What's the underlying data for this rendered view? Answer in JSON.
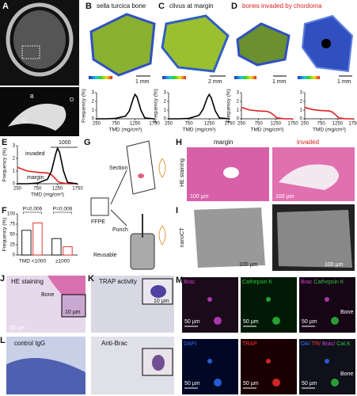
{
  "panels": {
    "a": {
      "letter": "A",
      "labels": [
        "B",
        "D",
        "C"
      ]
    },
    "b": {
      "letter": "B",
      "title": "sella turcica bone",
      "scale": "1 mm"
    },
    "c": {
      "letter": "C",
      "title": "clivus at margin",
      "scale": "2 mm"
    },
    "d": {
      "letter": "D",
      "title": "bones invaded by chordoma",
      "title_color": "#e02020",
      "scales": [
        "1 mm",
        "1 mm"
      ]
    },
    "e": {
      "letter": "E"
    },
    "f": {
      "letter": "F"
    },
    "g": {
      "letter": "G",
      "labels": [
        "Section",
        "FFPE",
        "Punch",
        "Reusable"
      ]
    },
    "h": {
      "letter": "H",
      "columns": [
        "margin",
        "invaded"
      ],
      "row_label": "HE staining",
      "scales": [
        "100 µm",
        "100 µm"
      ]
    },
    "i": {
      "letter": "I",
      "row_label": "nanoCT",
      "scales": [
        "100 µm",
        "100 µm"
      ]
    },
    "j": {
      "letter": "J",
      "title": "HE staining",
      "label": "Bone",
      "scales": [
        "10 µm",
        "50 µm"
      ]
    },
    "k": {
      "letter": "K",
      "title": "TRAP activity",
      "scales": [
        "10 µm"
      ]
    },
    "l": {
      "letter": "L",
      "titles": [
        "control IgG",
        "Anti-Brac"
      ]
    },
    "m": {
      "letter": "M",
      "tiles": [
        {
          "labels": [
            {
              "text": "Brac",
              "color": "#d040d0"
            }
          ],
          "scale": "50 µm"
        },
        {
          "labels": [
            {
              "text": "Cathepsin K",
              "color": "#30c040"
            }
          ],
          "scale": "50 µm"
        },
        {
          "labels": [
            {
              "text": "Brac",
              "color": "#d040d0"
            },
            {
              "text": "Cathepsin K",
              "color": "#30c040"
            }
          ],
          "scale": "50 µm",
          "note": "Bone"
        },
        {
          "labels": [
            {
              "text": "DAPI",
              "color": "#3070ff"
            }
          ],
          "scale": "50 µm"
        },
        {
          "labels": [
            {
              "text": "TRAP",
              "color": "#ff3030"
            }
          ],
          "scale": "50 µm"
        },
        {
          "labels": [
            {
              "text": "DA/",
              "color": "#3070ff"
            },
            {
              "text": "TR/",
              "color": "#ff3030"
            },
            {
              "text": "Brac/",
              "color": "#d040d0"
            },
            {
              "text": "Cat.K",
              "color": "#30c040"
            }
          ],
          "scale": "50 µm",
          "note": "Bone"
        }
      ]
    }
  },
  "chart_data": [
    {
      "type": "line",
      "x": [
        250,
        500,
        750,
        1000,
        1100,
        1200,
        1250,
        1300,
        1400,
        1500,
        1750
      ],
      "series": [
        {
          "color": "#000000",
          "values": [
            0,
            0,
            0.05,
            0.3,
            0.9,
            2.3,
            2.8,
            2.5,
            1.0,
            0.1,
            0
          ]
        }
      ],
      "xlim": [
        250,
        1750
      ],
      "ylim": [
        0,
        3
      ],
      "xticks": [
        250,
        750,
        1250,
        1750
      ],
      "yticks": [
        0,
        1,
        2,
        3
      ],
      "xlabel": "TMD (mg/cm³)",
      "ylabel": "Frequency (%)"
    },
    {
      "type": "line",
      "x": [
        250,
        500,
        750,
        1000,
        1100,
        1200,
        1250,
        1300,
        1400,
        1500,
        1750
      ],
      "series": [
        {
          "color": "#000000",
          "values": [
            0,
            0,
            0.05,
            0.4,
            1.1,
            2.4,
            2.8,
            2.4,
            0.9,
            0.1,
            0
          ]
        }
      ],
      "xlim": [
        250,
        1750
      ],
      "ylim": [
        0,
        3
      ],
      "xticks": [
        250,
        750,
        1250,
        1750
      ],
      "yticks": [
        0,
        1,
        2,
        3
      ],
      "xlabel": "TMD (mg/cm³)",
      "ylabel": "Frequency (%)"
    },
    {
      "type": "line",
      "x": [
        250,
        500,
        750,
        1000,
        1100,
        1200,
        1250,
        1300,
        1400,
        1500,
        1750
      ],
      "series": [
        {
          "color": "#e02020",
          "values": [
            1.3,
            1.0,
            0.9,
            0.85,
            0.7,
            0.4,
            0.2,
            0.1,
            0.05,
            0,
            0
          ]
        }
      ],
      "xlim": [
        250,
        1750
      ],
      "ylim": [
        0,
        3
      ],
      "xticks": [
        250,
        750,
        1250,
        1750
      ],
      "yticks": [
        0,
        1,
        2,
        3
      ],
      "xlabel": "TMD (mg/cm³)",
      "ylabel": "Frequency (%)"
    },
    {
      "type": "line",
      "x": [
        250,
        500,
        750,
        1000,
        1100,
        1200,
        1250,
        1300,
        1400,
        1500,
        1750
      ],
      "series": [
        {
          "color": "#e02020",
          "values": [
            1.3,
            1.05,
            0.95,
            0.9,
            0.75,
            0.45,
            0.25,
            0.1,
            0.05,
            0,
            0
          ]
        }
      ],
      "xlim": [
        250,
        1750
      ],
      "ylim": [
        0,
        3
      ],
      "xticks": [
        250,
        750,
        1250,
        1750
      ],
      "yticks": [
        0,
        1,
        2,
        3
      ],
      "xlabel": "TMD (mg/cm³)"
    },
    {
      "type": "line",
      "x": [
        250,
        500,
        750,
        1000,
        1100,
        1200,
        1250,
        1300,
        1400,
        1500,
        1750
      ],
      "series": [
        {
          "name": "invaded",
          "color": "#e02020",
          "values": [
            1.3,
            1.0,
            0.9,
            0.85,
            0.7,
            0.4,
            0.2,
            0.1,
            0.05,
            0,
            0
          ]
        },
        {
          "name": "margin",
          "color": "#000000",
          "values": [
            0,
            0,
            0.05,
            0.35,
            1.0,
            2.3,
            2.8,
            2.5,
            1.0,
            0.1,
            0
          ]
        }
      ],
      "xlim": [
        250,
        1750
      ],
      "ylim": [
        0,
        3
      ],
      "xticks": [
        250,
        750,
        1250,
        1750
      ],
      "yticks": [
        0,
        1,
        2,
        3
      ],
      "xlabel": "TMD (mg/cm³)",
      "ylabel": "Frequency (%)",
      "annotations": [
        "1000"
      ]
    },
    {
      "type": "bar",
      "categories": [
        "TMD <1000",
        "≥1000"
      ],
      "series": [
        {
          "color": "#000000",
          "values": [
            60,
            40
          ]
        },
        {
          "color": "#e02020",
          "values": [
            78,
            20
          ]
        }
      ],
      "ylim": [
        0,
        100
      ],
      "yticks": [
        0,
        25,
        50,
        75,
        100
      ],
      "ylabel": "Frequency (%)",
      "annotations": [
        "P=0.006",
        "P=0.006"
      ]
    }
  ]
}
